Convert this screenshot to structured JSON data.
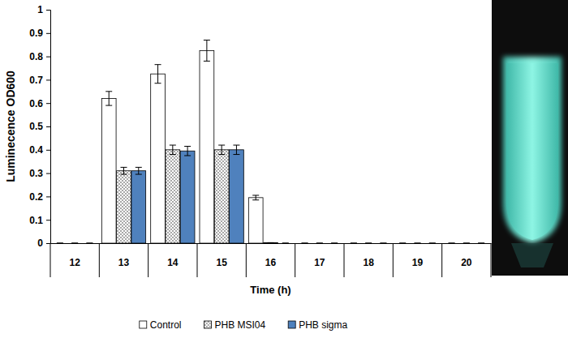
{
  "chart_data": {
    "type": "bar",
    "x_label": "Time (h)",
    "y_label": "Luminecence OD600",
    "categories": [
      "12",
      "13",
      "14",
      "15",
      "16",
      "17",
      "18",
      "19",
      "20"
    ],
    "series": [
      {
        "name": "Control",
        "color": "#ffffff",
        "values": [
          0,
          0.62,
          0.725,
          0.825,
          0.195,
          0,
          0,
          0,
          0
        ],
        "errors": [
          0,
          0.03,
          0.04,
          0.045,
          0.01,
          0,
          0,
          0,
          0
        ]
      },
      {
        "name": "PHB MSI04",
        "color": "#7f7f7f",
        "marker": "dots",
        "values": [
          0,
          0.31,
          0.4,
          0.4,
          0.002,
          0,
          0,
          0,
          0
        ],
        "errors": [
          0,
          0.015,
          0.02,
          0.02,
          0,
          0,
          0,
          0,
          0
        ]
      },
      {
        "name": "PHB sigma",
        "color": "#4f81bd",
        "values": [
          0,
          0.31,
          0.395,
          0.4,
          0,
          0,
          0,
          0,
          0
        ],
        "errors": [
          0,
          0.015,
          0.02,
          0.02,
          0,
          0,
          0,
          0,
          0
        ]
      }
    ],
    "ylim": [
      0,
      1
    ],
    "yticks": [
      0,
      0.1,
      0.2,
      0.3,
      0.4,
      0.5,
      0.6,
      0.7,
      0.8,
      0.9,
      1
    ],
    "grid": false,
    "legend": "bottom"
  }
}
